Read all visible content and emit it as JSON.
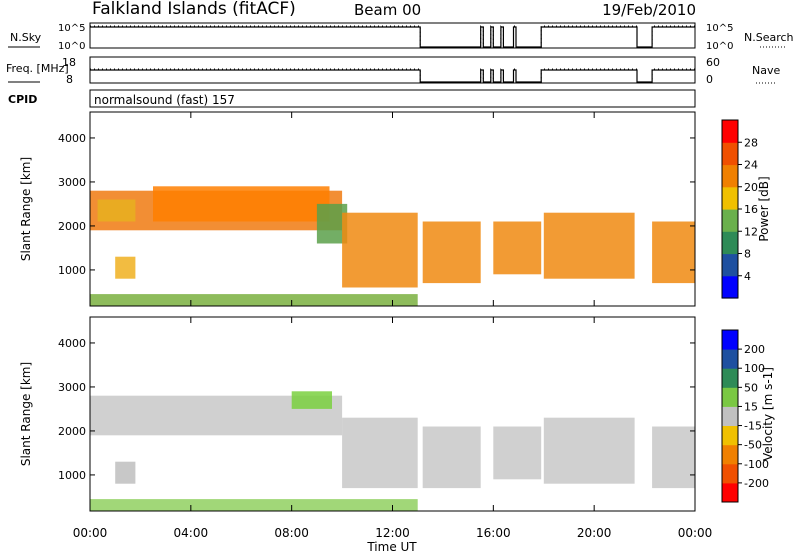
{
  "header": {
    "station": "Falkland Islands (fitACF)",
    "beam": "Beam 00",
    "date": "19/Feb/2010"
  },
  "chart_data": [
    {
      "type": "line",
      "panel": "noise",
      "ylabel_left": "N.Sky",
      "ylabel_right": "N.Search",
      "yticks_left": [
        "10^5",
        "10^0"
      ],
      "yticks_right": [
        "10^5",
        "10^0"
      ],
      "x": [
        0,
        13.0,
        13.1,
        15.5,
        15.6,
        15.9,
        16.0,
        16.3,
        16.4,
        16.8,
        16.9,
        17.9,
        18.0,
        21.6,
        21.7,
        22.2,
        22.3,
        24
      ],
      "values": [
        1,
        1,
        0,
        1,
        0,
        1,
        0,
        1,
        0,
        1,
        0,
        1,
        1,
        1,
        0,
        0,
        1,
        1
      ]
    },
    {
      "type": "line",
      "panel": "frequency",
      "ylabel_left": "Freq. [MHz]",
      "ylabel_right": "Nave",
      "yticks_left": [
        "18",
        "8"
      ],
      "yticks_right": [
        "60",
        "0"
      ],
      "x": [
        0,
        13.0,
        13.1,
        15.5,
        15.6,
        15.9,
        16.0,
        16.3,
        16.4,
        16.8,
        16.9,
        17.9,
        18.0,
        21.6,
        21.7,
        22.2,
        22.3,
        24
      ],
      "values": [
        1,
        1,
        0,
        1,
        0,
        1,
        0,
        1,
        0,
        1,
        0,
        1,
        1,
        1,
        0,
        0,
        1,
        1
      ]
    },
    {
      "type": "table",
      "panel": "cpid",
      "label": "CPID",
      "program": "normalsound (fast) 157"
    },
    {
      "type": "heatmap",
      "panel": "power",
      "ylabel": "Slant Range [km]",
      "ylim": [
        180,
        4590
      ],
      "yticks": [
        1000,
        2000,
        3000,
        4000
      ],
      "colorbar_label": "Power [dB]",
      "colorbar_ticks": [
        "28",
        "24",
        "20",
        "16",
        "12",
        "8",
        "4"
      ],
      "colorbar_colors": [
        "#0000ff",
        "#1e50a0",
        "#2e8b57",
        "#6ab04c",
        "#f0c000",
        "#f08000",
        "#f05000",
        "#ff0000"
      ],
      "regions": [
        {
          "t0": 0.0,
          "t1": 10.0,
          "r0": 1900,
          "r1": 2800,
          "color": "#f07a10"
        },
        {
          "t0": 2.5,
          "t1": 9.5,
          "r0": 2100,
          "r1": 2900,
          "color": "#ff7f00"
        },
        {
          "t0": 0.3,
          "t1": 1.8,
          "r0": 2100,
          "r1": 2600,
          "color": "#e8b020"
        },
        {
          "t0": 9.0,
          "t1": 10.2,
          "r0": 1600,
          "r1": 2500,
          "color": "#5aa04a"
        },
        {
          "t0": 10.0,
          "t1": 13.0,
          "r0": 600,
          "r1": 2300,
          "color": "#f08a10"
        },
        {
          "t0": 1.0,
          "t1": 1.8,
          "r0": 800,
          "r1": 1300,
          "color": "#f0b020"
        },
        {
          "t0": 13.2,
          "t1": 15.5,
          "r0": 700,
          "r1": 2100,
          "color": "#f08a10"
        },
        {
          "t0": 16.0,
          "t1": 17.9,
          "r0": 900,
          "r1": 2100,
          "color": "#f08a10"
        },
        {
          "t0": 18.0,
          "t1": 21.6,
          "r0": 800,
          "r1": 2300,
          "color": "#f08a10"
        },
        {
          "t0": 22.3,
          "t1": 24.0,
          "r0": 700,
          "r1": 2100,
          "color": "#f08a10"
        },
        {
          "t0": 0.0,
          "t1": 13.0,
          "r0": 190,
          "r1": 450,
          "color": "#7ab040"
        }
      ]
    },
    {
      "type": "heatmap",
      "panel": "velocity",
      "ylabel": "Slant Range [km]",
      "ylim": [
        180,
        4590
      ],
      "yticks": [
        1000,
        2000,
        3000,
        4000
      ],
      "colorbar_label": "Velocity [m s-1]",
      "colorbar_ticks": [
        "200",
        "100",
        "50",
        "15",
        "-15",
        "-50",
        "-100",
        "-200"
      ],
      "colorbar_colors": [
        "#ff0000",
        "#f05000",
        "#f08000",
        "#f0c000",
        "#c0c0c0",
        "#7ac843",
        "#2e8b57",
        "#1e50a0",
        "#0000ff"
      ],
      "regions": [
        {
          "t0": 0.0,
          "t1": 10.0,
          "r0": 1900,
          "r1": 2800,
          "color": "#c8c8c8"
        },
        {
          "t0": 8.0,
          "t1": 9.6,
          "r0": 2500,
          "r1": 2900,
          "color": "#7ad040"
        },
        {
          "t0": 10.0,
          "t1": 13.0,
          "r0": 700,
          "r1": 2300,
          "color": "#c8c8c8"
        },
        {
          "t0": 1.0,
          "t1": 1.8,
          "r0": 800,
          "r1": 1300,
          "color": "#bebebe"
        },
        {
          "t0": 13.2,
          "t1": 15.5,
          "r0": 700,
          "r1": 2100,
          "color": "#c8c8c8"
        },
        {
          "t0": 16.0,
          "t1": 17.9,
          "r0": 900,
          "r1": 2100,
          "color": "#c8c8c8"
        },
        {
          "t0": 18.0,
          "t1": 21.6,
          "r0": 800,
          "r1": 2300,
          "color": "#c8c8c8"
        },
        {
          "t0": 22.3,
          "t1": 24.0,
          "r0": 700,
          "r1": 2100,
          "color": "#c8c8c8"
        },
        {
          "t0": 0.0,
          "t1": 13.0,
          "r0": 190,
          "r1": 450,
          "color": "#90d060"
        }
      ]
    }
  ],
  "x_axis": {
    "label": "Time UT",
    "range": [
      0,
      24
    ],
    "ticks": [
      0,
      4,
      8,
      12,
      16,
      20,
      24
    ],
    "tick_labels": [
      "00:00",
      "04:00",
      "08:00",
      "12:00",
      "16:00",
      "20:00",
      "00:00"
    ]
  }
}
